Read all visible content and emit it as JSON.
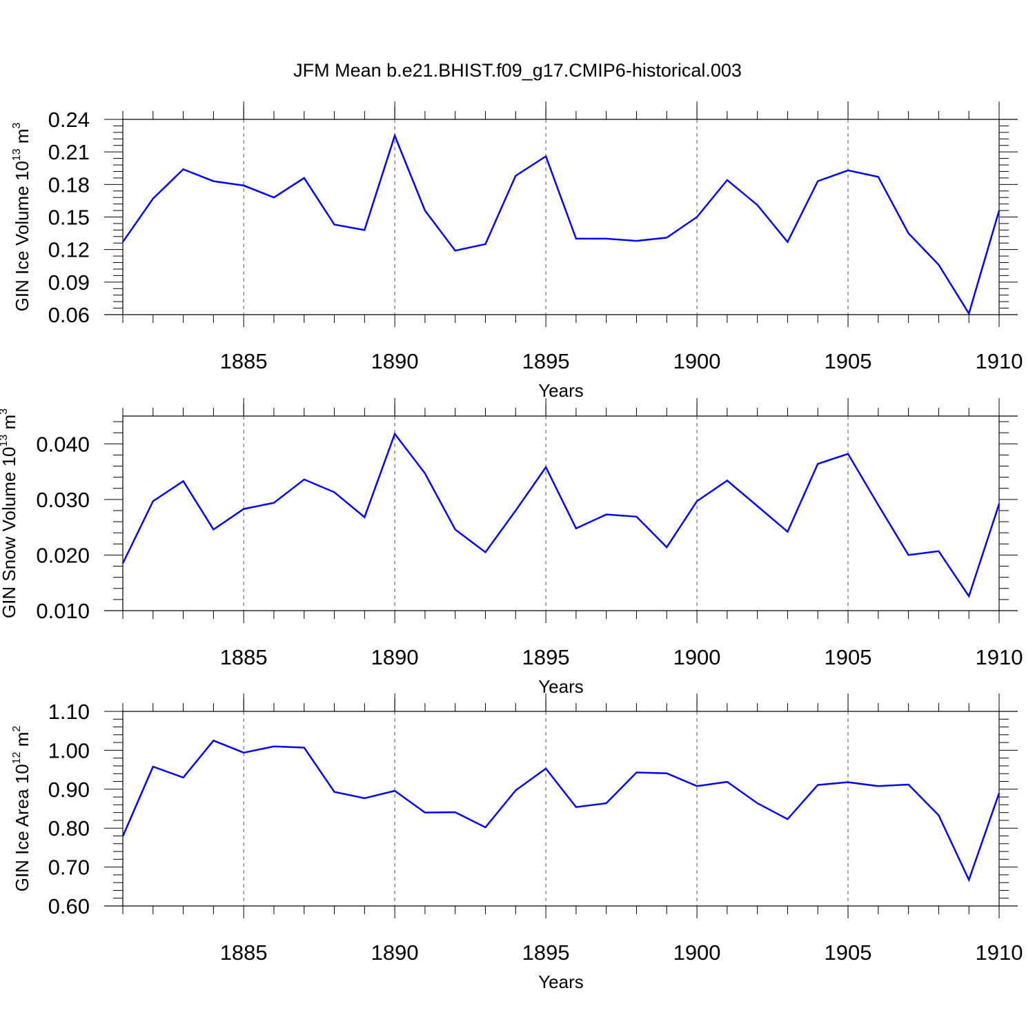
{
  "title": "JFM Mean b.e21.BHIST.f09_g17.CMIP6-historical.003",
  "chart_data": [
    {
      "type": "line",
      "title": "",
      "ylabel": "GIN Ice Volume 10",
      "ylabel_exp": "13",
      "ylabel_unit": " m",
      "ylabel_unit_exp": "3",
      "xlabel": "Years",
      "xlim": [
        1881,
        1910
      ],
      "ylim": [
        0.06,
        0.24
      ],
      "yticks": [
        0.06,
        0.09,
        0.12,
        0.15,
        0.18,
        0.21,
        0.24
      ],
      "ytick_labels": [
        "0.06",
        "0.09",
        "0.12",
        "0.15",
        "0.18",
        "0.21",
        "0.24"
      ],
      "yminor_step": 0.006,
      "xticks": [
        1885,
        1890,
        1895,
        1900,
        1905,
        1910
      ],
      "xtick_labels": [
        "1885",
        "1890",
        "1895",
        "1900",
        "1905",
        "1910"
      ],
      "grid_x": true,
      "color": "#0000ff",
      "x": [
        1881,
        1882,
        1883,
        1884,
        1885,
        1886,
        1887,
        1888,
        1889,
        1890,
        1891,
        1892,
        1893,
        1894,
        1895,
        1896,
        1897,
        1898,
        1899,
        1900,
        1901,
        1902,
        1903,
        1904,
        1905,
        1906,
        1907,
        1908,
        1909,
        1910
      ],
      "values": [
        0.127,
        0.167,
        0.194,
        0.183,
        0.179,
        0.168,
        0.186,
        0.143,
        0.138,
        0.225,
        0.156,
        0.119,
        0.125,
        0.188,
        0.206,
        0.13,
        0.13,
        0.128,
        0.131,
        0.15,
        0.184,
        0.161,
        0.127,
        0.183,
        0.193,
        0.187,
        0.135,
        0.106,
        0.061,
        0.156
      ]
    },
    {
      "type": "line",
      "title": "",
      "ylabel": "GIN Snow Volume 10",
      "ylabel_exp": "13",
      "ylabel_unit": " m",
      "ylabel_unit_exp": "3",
      "xlabel": "Years",
      "xlim": [
        1881,
        1910
      ],
      "ylim": [
        0.01,
        0.045
      ],
      "yticks": [
        0.01,
        0.02,
        0.03,
        0.04
      ],
      "ytick_labels": [
        "0.010",
        "0.020",
        "0.030",
        "0.040"
      ],
      "yminor_step": 0.002,
      "xticks": [
        1885,
        1890,
        1895,
        1900,
        1905,
        1910
      ],
      "xtick_labels": [
        "1885",
        "1890",
        "1895",
        "1900",
        "1905",
        "1910"
      ],
      "grid_x": true,
      "color": "#0000ff",
      "x": [
        1881,
        1882,
        1883,
        1884,
        1885,
        1886,
        1887,
        1888,
        1889,
        1890,
        1891,
        1892,
        1893,
        1894,
        1895,
        1896,
        1897,
        1898,
        1899,
        1900,
        1901,
        1902,
        1903,
        1904,
        1905,
        1906,
        1907,
        1908,
        1909,
        1910
      ],
      "values": [
        0.0185,
        0.0297,
        0.0333,
        0.0246,
        0.0283,
        0.0294,
        0.0336,
        0.0313,
        0.0268,
        0.0418,
        0.0347,
        0.0246,
        0.0205,
        0.028,
        0.0358,
        0.0248,
        0.0273,
        0.0269,
        0.0214,
        0.0297,
        0.0334,
        0.0288,
        0.0242,
        0.0364,
        0.0382,
        0.029,
        0.02,
        0.0207,
        0.0126,
        0.0292
      ]
    },
    {
      "type": "line",
      "title": "",
      "ylabel": "GIN Ice Area 10",
      "ylabel_exp": "12",
      "ylabel_unit": " m",
      "ylabel_unit_exp": "2",
      "xlabel": "Years",
      "xlim": [
        1881,
        1910
      ],
      "ylim": [
        0.6,
        1.1
      ],
      "yticks": [
        0.6,
        0.7,
        0.8,
        0.9,
        1.0,
        1.1
      ],
      "ytick_labels": [
        "0.60",
        "0.70",
        "0.80",
        "0.90",
        "1.00",
        "1.10"
      ],
      "yminor_step": 0.02,
      "xticks": [
        1885,
        1890,
        1895,
        1900,
        1905,
        1910
      ],
      "xtick_labels": [
        "1885",
        "1890",
        "1895",
        "1900",
        "1905",
        "1910"
      ],
      "grid_x": true,
      "color": "#0000ff",
      "x": [
        1881,
        1882,
        1883,
        1884,
        1885,
        1886,
        1887,
        1888,
        1889,
        1890,
        1891,
        1892,
        1893,
        1894,
        1895,
        1896,
        1897,
        1898,
        1899,
        1900,
        1901,
        1902,
        1903,
        1904,
        1905,
        1906,
        1907,
        1908,
        1909,
        1910
      ],
      "values": [
        0.779,
        0.958,
        0.93,
        1.025,
        0.994,
        1.01,
        1.007,
        0.893,
        0.877,
        0.896,
        0.84,
        0.841,
        0.802,
        0.897,
        0.953,
        0.854,
        0.864,
        0.943,
        0.941,
        0.908,
        0.919,
        0.864,
        0.823,
        0.911,
        0.918,
        0.908,
        0.912,
        0.833,
        0.667,
        0.89
      ]
    }
  ]
}
